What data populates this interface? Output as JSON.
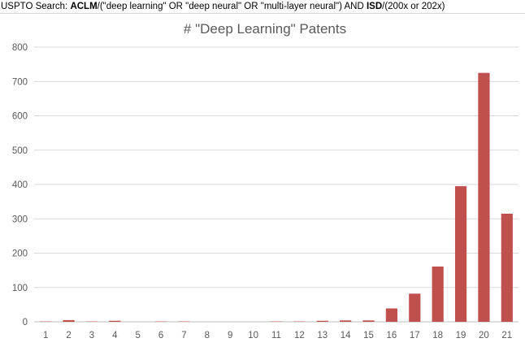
{
  "caption": {
    "prefix": "USPTO Search: ",
    "aclm_field": "ACLM",
    "aclm_query": "/(\"deep learning\" OR \"deep neural\" OR \"multi-layer neural\") AND ",
    "isd_field": "ISD",
    "isd_query": "/(200x or 202x)"
  },
  "chart_data": {
    "type": "bar",
    "title": "# \"Deep Learning\" Patents",
    "xlabel": "",
    "ylabel": "",
    "categories": [
      "1",
      "2",
      "3",
      "4",
      "5",
      "6",
      "7",
      "8",
      "9",
      "10",
      "11",
      "12",
      "13",
      "14",
      "15",
      "16",
      "17",
      "18",
      "19",
      "20",
      "21"
    ],
    "values": [
      1,
      5,
      1,
      3,
      0,
      1,
      1,
      0,
      0,
      0,
      1,
      1,
      3,
      4,
      4,
      39,
      82,
      161,
      395,
      725,
      315
    ],
    "ylim": [
      0,
      800
    ],
    "yticks": [
      0,
      100,
      200,
      300,
      400,
      500,
      600,
      700,
      800
    ],
    "grid": true,
    "legend": "none",
    "bar_color": "#c0504d"
  }
}
